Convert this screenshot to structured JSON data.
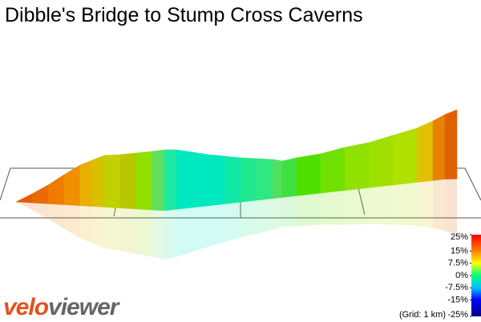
{
  "chart_data": {
    "type": "elevation-profile",
    "title": "Dibble's Bridge to Stump Cross Caverns",
    "colorbar_lim": [
      -25,
      25
    ],
    "colorbar_ticks": [
      {
        "value": 25,
        "label": "25%"
      },
      {
        "value": 15,
        "label": "15%"
      },
      {
        "value": 7.5,
        "label": "7.5%"
      },
      {
        "value": 0,
        "label": "0%"
      },
      {
        "value": -7.5,
        "label": "-7.5%"
      },
      {
        "value": -15,
        "label": "-15%"
      },
      {
        "value": -25,
        "label": "-25%"
      }
    ],
    "grid_note": "(Grid: 1 km)",
    "logo_left": "velo",
    "logo_right": "viewer"
  }
}
